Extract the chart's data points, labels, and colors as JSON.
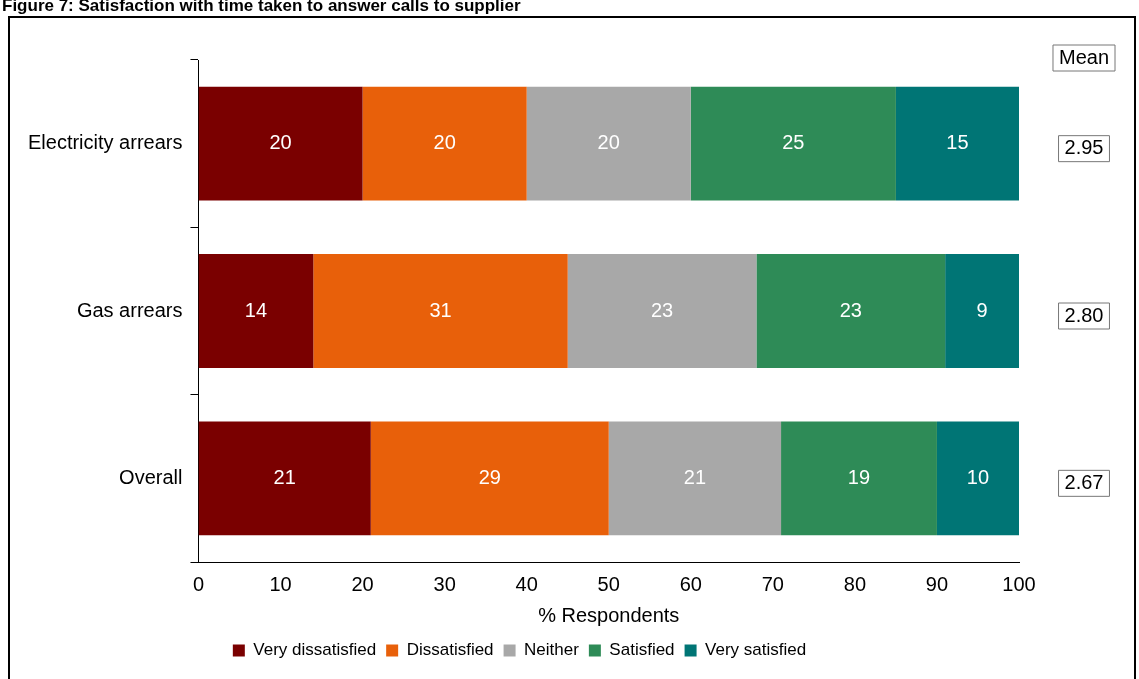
{
  "chart_data": {
    "type": "bar",
    "orientation": "horizontal",
    "stacked": true,
    "title": "Figure 7: Satisfaction with time taken to answer calls to supplier",
    "xlabel": "% Respondents",
    "categories": [
      "Electricity arrears",
      "Gas arrears",
      "Overall"
    ],
    "series": [
      {
        "name": "Very dissatisfied",
        "color": "#7a0000",
        "values": [
          20,
          14,
          21
        ]
      },
      {
        "name": "Dissatisfied",
        "color": "#e8600a",
        "values": [
          20,
          31,
          29
        ]
      },
      {
        "name": "Neither",
        "color": "#a8a8a8",
        "values": [
          20,
          23,
          21
        ]
      },
      {
        "name": "Satisfied",
        "color": "#2e8b57",
        "values": [
          25,
          23,
          19
        ]
      },
      {
        "name": "Very satisfied",
        "color": "#007575",
        "values": [
          15,
          9,
          10
        ]
      }
    ],
    "xlim": [
      0,
      100
    ],
    "xticks": [
      0,
      10,
      20,
      30,
      40,
      50,
      60,
      70,
      80,
      90,
      100
    ],
    "grid": false,
    "legend": "bottom",
    "data_labels": true,
    "annotations": [
      "Mean",
      "2.95",
      "2.80",
      "2.67"
    ]
  }
}
